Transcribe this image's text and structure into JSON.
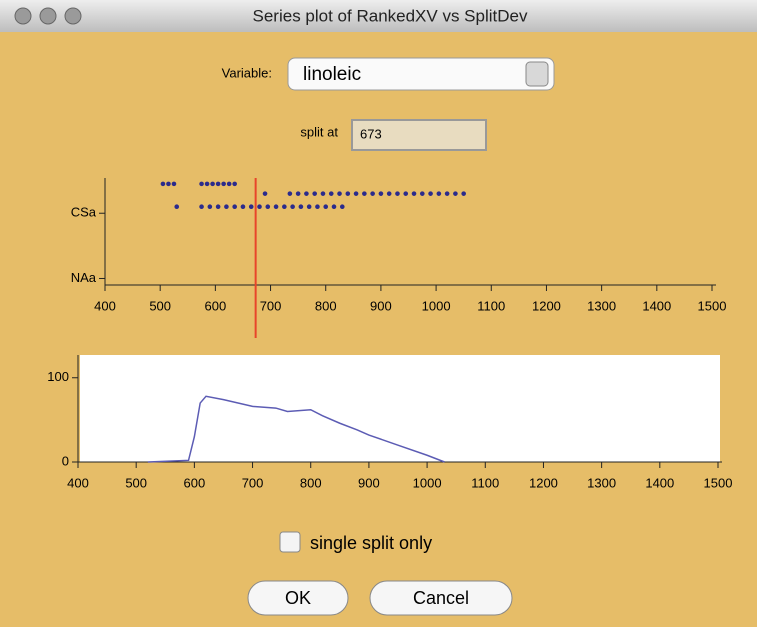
{
  "window": {
    "title": "Series plot of RankedXV vs SplitDev"
  },
  "controls": {
    "variable_label": "Variable:",
    "variable_value": "linoleic",
    "split_label": "split at",
    "split_value": 673,
    "checkbox_label": "single split only",
    "ok": "OK",
    "cancel": "Cancel"
  },
  "chart_data": [
    {
      "type": "scatter",
      "color": "#2b2b8c",
      "split_color": "#e8452a",
      "xlim": [
        400,
        1500
      ],
      "xticks": [
        400,
        500,
        600,
        700,
        800,
        900,
        1000,
        1100,
        1200,
        1300,
        1400,
        1500
      ],
      "ylim": [
        -0.1,
        1.54
      ],
      "yticks": [
        {
          "value": 0,
          "label": "NAa"
        },
        {
          "value": 1,
          "label": "CSa"
        }
      ],
      "series": [
        {
          "y": 1.45,
          "x": [
            505,
            515,
            525,
            575,
            585,
            595,
            605,
            615,
            625,
            635
          ]
        },
        {
          "y": 1.3,
          "x": [
            690,
            735,
            750,
            765,
            780,
            795,
            810,
            825,
            840,
            855,
            870,
            885,
            900,
            915,
            930,
            945,
            960,
            975,
            990,
            1005,
            1020,
            1035,
            1050
          ]
        },
        {
          "y": 1.1,
          "x": [
            530,
            575,
            590,
            605,
            620,
            635,
            650,
            665,
            680,
            695,
            710,
            725,
            740,
            755,
            770,
            785,
            800,
            815,
            830
          ]
        }
      ]
    },
    {
      "type": "line",
      "color": "#5c5cb4",
      "xlim": [
        400,
        1500
      ],
      "xticks": [
        400,
        500,
        600,
        700,
        800,
        900,
        1000,
        1100,
        1200,
        1300,
        1400,
        1500
      ],
      "ylim": [
        0,
        127
      ],
      "yticks": [
        0,
        100
      ],
      "x": [
        520,
        590,
        600,
        610,
        620,
        650,
        700,
        740,
        760,
        800,
        820,
        850,
        880,
        900,
        950,
        1000,
        1030
      ],
      "values": [
        0,
        2,
        30,
        70,
        78,
        74,
        66,
        64,
        60,
        62,
        55,
        46,
        38,
        32,
        20,
        8,
        0
      ]
    }
  ]
}
